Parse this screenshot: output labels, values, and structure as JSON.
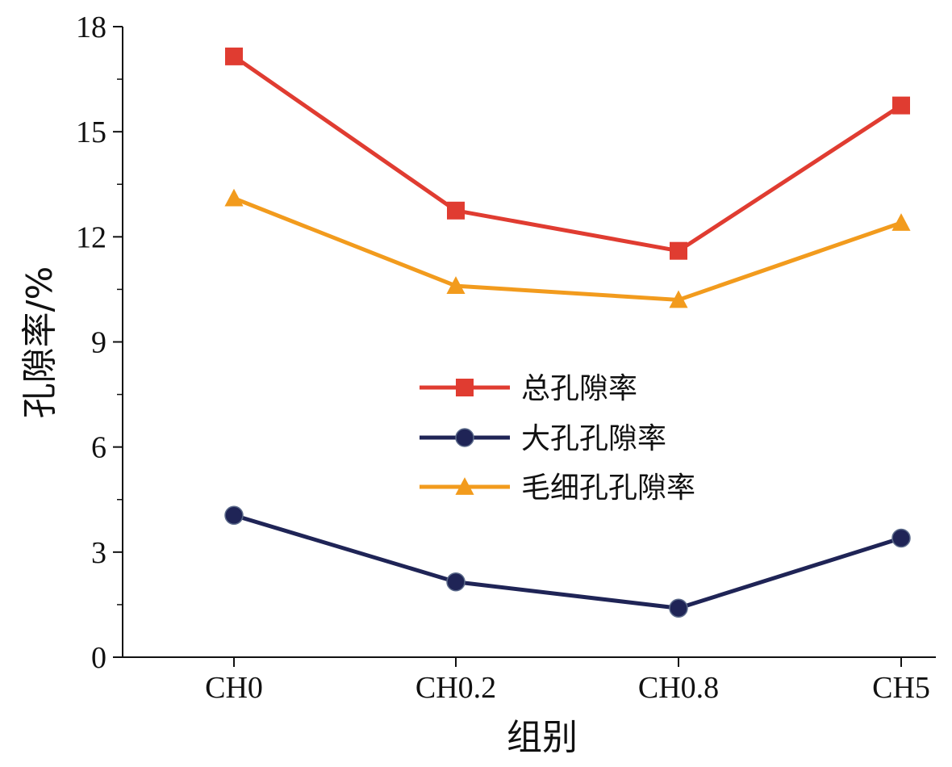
{
  "chart_data": {
    "type": "line",
    "categories": [
      "CH0",
      "CH0.2",
      "CH0.8",
      "CH5"
    ],
    "xlabel": "组别",
    "ylabel": "孔隙率/%",
    "ylim": [
      0,
      18
    ],
    "yticks": [
      "0",
      "3",
      "6",
      "9",
      "12",
      "15",
      "18"
    ],
    "grid": false,
    "legend_position": "center",
    "series": [
      {
        "name": "总孔隙率",
        "values": [
          17.15,
          12.75,
          11.6,
          15.75
        ],
        "color": "#e03c31",
        "marker": "square"
      },
      {
        "name": "大孔孔隙率",
        "values": [
          4.05,
          2.15,
          1.4,
          3.4
        ],
        "color": "#1f2456",
        "marker": "circle"
      },
      {
        "name": "毛细孔孔隙率",
        "values": [
          13.1,
          10.6,
          10.2,
          12.4
        ],
        "color": "#f29b1d",
        "marker": "triangle"
      }
    ]
  }
}
